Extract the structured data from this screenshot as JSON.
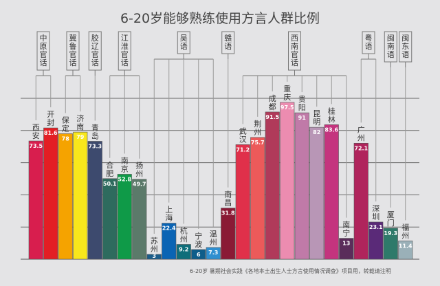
{
  "chart_data": {
    "type": "bar",
    "title": "6-20岁能够熟练使用方言人群比例",
    "note": "6-20岁 暑期社会实践《各地本土出生人士方言使用情况调查》项目用，转载请注明",
    "ylim": [
      0,
      100
    ],
    "grid": true,
    "categories": [
      "西安",
      "开封",
      "保定",
      "济南",
      "青岛",
      "合肥",
      "南京",
      "扬州",
      "苏州",
      "上海",
      "杭州",
      "宁波",
      "温州",
      "南昌",
      "武汉",
      "荆州",
      "成都",
      "重庆",
      "贵阳",
      "昆明",
      "桂林",
      "南宁",
      "广州",
      "深圳",
      "厦门",
      "福州"
    ],
    "values": [
      73.5,
      81.6,
      78,
      79,
      73.3,
      50.1,
      52.8,
      49.7,
      3,
      22.4,
      9.2,
      6,
      7.3,
      31.8,
      71.2,
      75.7,
      91.5,
      97.5,
      91,
      82,
      83.6,
      13,
      72.1,
      23.1,
      19.3,
      11.4
    ],
    "value_labels": [
      "73.5",
      "81.6",
      "78",
      "79",
      "73.3",
      "50.1",
      "52.8",
      "49.7",
      "3",
      "22.4",
      "9.2",
      "6",
      "7.3",
      "31.8",
      "71.2",
      "75.7",
      "91.5",
      "97.5",
      "91",
      "82",
      "83.6",
      "13",
      "72.1",
      "23.1",
      "19.3",
      "11.4"
    ],
    "colors": [
      "#d81e4e",
      "#e31e24",
      "#f5a300",
      "#f8e71c",
      "#3d4a6e",
      "#2e6b5e",
      "#0f9a48",
      "#5b7a6a",
      "#1a5c8a",
      "#0a64b4",
      "#0f6e7a",
      "#0e5d8a",
      "#2e8fd0",
      "#8a1a35",
      "#e0304a",
      "#ec5a5a",
      "#b03a5a",
      "#ec8cb0",
      "#c07aa8",
      "#b896b6",
      "#c4347e",
      "#5a2c5a",
      "#b0245c",
      "#5a2a78",
      "#2e7a6a",
      "#9ab0b8"
    ],
    "groups": [
      {
        "name": "中原官话",
        "from": 0,
        "to": 1
      },
      {
        "name": "冀鲁官话",
        "from": 2,
        "to": 3
      },
      {
        "name": "胶辽官话",
        "from": 4,
        "to": 4
      },
      {
        "name": "江淮官话",
        "from": 5,
        "to": 7
      },
      {
        "name": "吴语",
        "from": 8,
        "to": 12
      },
      {
        "name": "赣语",
        "from": 13,
        "to": 13
      },
      {
        "name": "西南官话",
        "from": 14,
        "to": 21
      },
      {
        "name": "粤语",
        "from": 22,
        "to": 23
      },
      {
        "name": "闽南语",
        "from": 24,
        "to": 24
      },
      {
        "name": "闽东语",
        "from": 25,
        "to": 25
      }
    ]
  }
}
